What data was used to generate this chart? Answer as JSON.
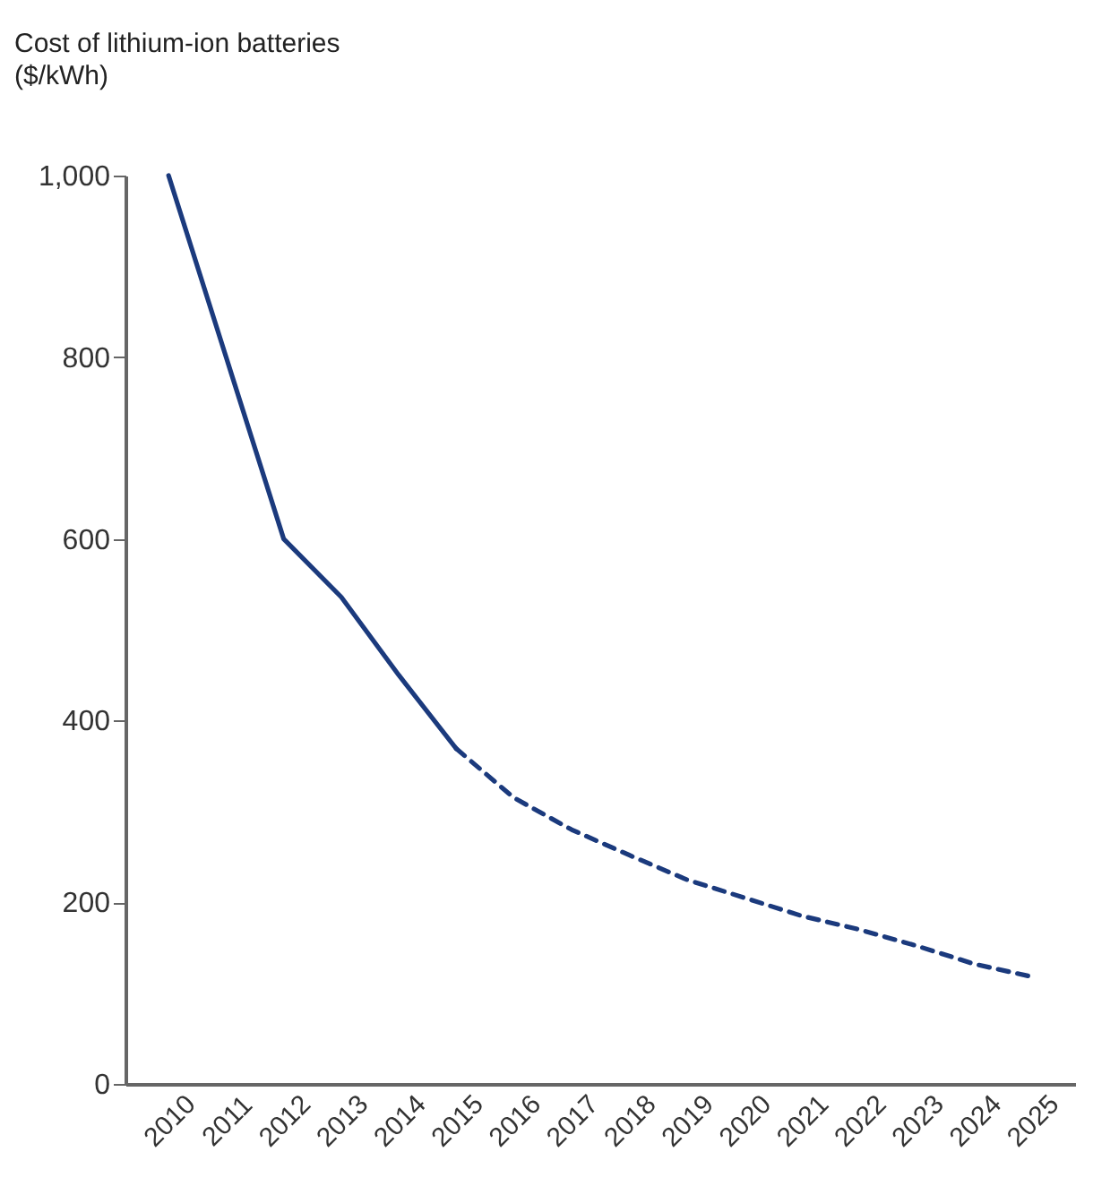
{
  "chart_data": {
    "type": "line",
    "title": "Cost of lithium-ion batteries",
    "subtitle": "($/kWh)",
    "categories": [
      "2010",
      "2011",
      "2012",
      "2013",
      "2014",
      "2015",
      "2016",
      "2017",
      "2018",
      "2019",
      "2020",
      "2021",
      "2022",
      "2023",
      "2024",
      "2025"
    ],
    "ylim": [
      0,
      1000
    ],
    "yticks": [
      0,
      200,
      400,
      600,
      800,
      {
        "value": 1000,
        "label": "1,000"
      }
    ],
    "marker": "none",
    "series": [
      {
        "color": "#1b3a7d",
        "line_style": "solid",
        "values": [
          1000,
          800,
          600,
          536,
          450,
          369,
          null,
          null,
          null,
          null,
          null,
          null,
          null,
          null,
          null,
          null
        ]
      },
      {
        "color": "#1b3a7d",
        "line_style": "dashed",
        "values": [
          null,
          null,
          null,
          null,
          null,
          369,
          315,
          280,
          252,
          225,
          205,
          185,
          170,
          152,
          132,
          118
        ]
      }
    ]
  }
}
